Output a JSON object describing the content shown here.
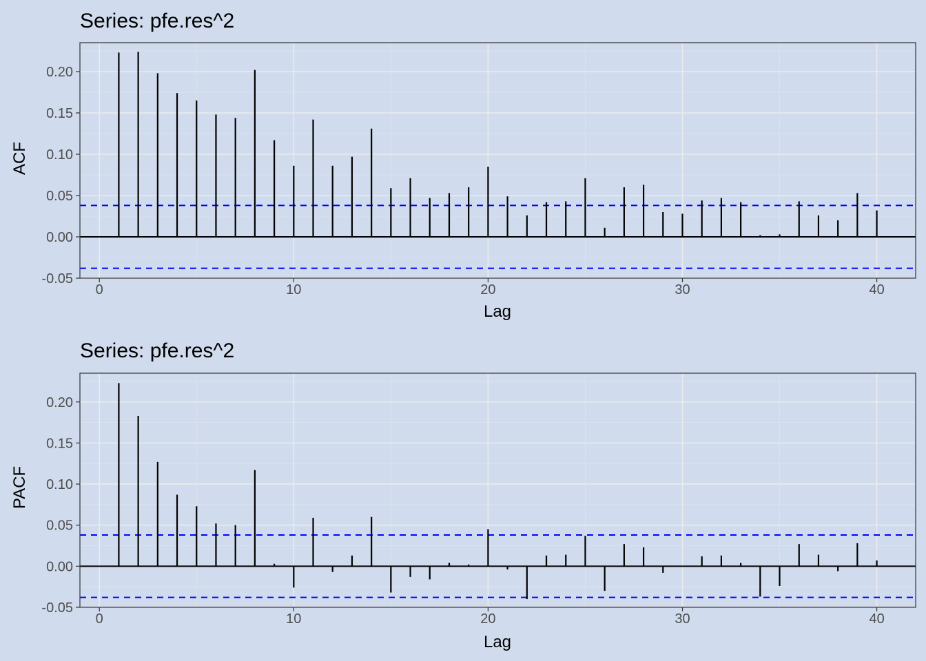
{
  "chart_data": [
    {
      "type": "bar",
      "title": "Series: pfe.res^2",
      "xlabel": "Lag",
      "ylabel": "ACF",
      "xlim": [
        -1,
        42
      ],
      "ylim": [
        -0.05,
        0.235
      ],
      "xticks": [
        "0",
        "10",
        "20",
        "30",
        "40"
      ],
      "yticks": [
        "-0.05",
        "0.00",
        "0.05",
        "0.10",
        "0.15",
        "0.20"
      ],
      "grid": true,
      "confidence_bound": 0.038,
      "colors": {
        "bars": "#000000",
        "bounds": "#0000ff",
        "background": "#d0dced",
        "grid": "#ebebeb"
      },
      "lags": [
        1,
        2,
        3,
        4,
        5,
        6,
        7,
        8,
        9,
        10,
        11,
        12,
        13,
        14,
        15,
        16,
        17,
        18,
        19,
        20,
        21,
        22,
        23,
        24,
        25,
        26,
        27,
        28,
        29,
        30,
        31,
        32,
        33,
        34,
        35,
        36,
        37,
        38,
        39,
        40
      ],
      "values": [
        0.223,
        0.224,
        0.198,
        0.174,
        0.165,
        0.148,
        0.144,
        0.202,
        0.117,
        0.086,
        0.142,
        0.086,
        0.097,
        0.131,
        0.059,
        0.071,
        0.047,
        0.053,
        0.06,
        0.085,
        0.049,
        0.026,
        0.042,
        0.043,
        0.071,
        0.011,
        0.06,
        0.063,
        0.03,
        0.028,
        0.044,
        0.047,
        0.042,
        0.002,
        0.003,
        0.043,
        0.026,
        0.02,
        0.053,
        0.032
      ]
    },
    {
      "type": "bar",
      "title": "Series: pfe.res^2",
      "xlabel": "Lag",
      "ylabel": "PACF",
      "xlim": [
        -1,
        42
      ],
      "ylim": [
        -0.05,
        0.235
      ],
      "xticks": [
        "0",
        "10",
        "20",
        "30",
        "40"
      ],
      "yticks": [
        "-0.05",
        "0.00",
        "0.05",
        "0.10",
        "0.15",
        "0.20"
      ],
      "grid": true,
      "confidence_bound": 0.038,
      "colors": {
        "bars": "#000000",
        "bounds": "#0000ff",
        "background": "#d0dced",
        "grid": "#ebebeb"
      },
      "lags": [
        1,
        2,
        3,
        4,
        5,
        6,
        7,
        8,
        9,
        10,
        11,
        12,
        13,
        14,
        15,
        16,
        17,
        18,
        19,
        20,
        21,
        22,
        23,
        24,
        25,
        26,
        27,
        28,
        29,
        30,
        31,
        32,
        33,
        34,
        35,
        36,
        37,
        38,
        39,
        40
      ],
      "values": [
        0.223,
        0.183,
        0.127,
        0.087,
        0.073,
        0.052,
        0.05,
        0.117,
        0.003,
        -0.026,
        0.059,
        -0.007,
        0.013,
        0.06,
        -0.032,
        -0.013,
        -0.016,
        0.004,
        0.002,
        0.045,
        -0.004,
        -0.04,
        0.013,
        0.014,
        0.037,
        -0.03,
        0.027,
        0.023,
        -0.008,
        0.0,
        0.012,
        0.013,
        0.004,
        -0.037,
        -0.024,
        0.027,
        0.014,
        -0.006,
        0.028,
        0.007
      ]
    }
  ]
}
